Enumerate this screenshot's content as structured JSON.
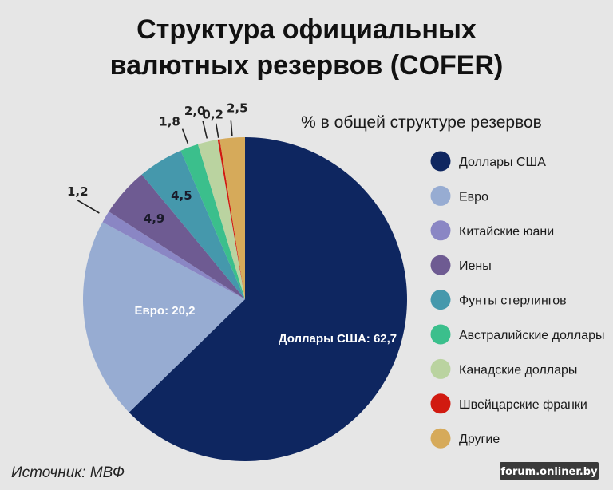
{
  "chart_data": {
    "type": "pie",
    "title_lines": [
      "Структура официальных",
      "валютных резервов (COFER)"
    ],
    "subtitle": "% в общей структуре резервов",
    "slices": [
      {
        "name": "Доллары США",
        "value": 62.7,
        "label": "Доллары США: 62,7",
        "color": "#0e2660"
      },
      {
        "name": "Евро",
        "value": 20.2,
        "label": "Евро: 20,2",
        "color": "#97acd2"
      },
      {
        "name": "Китайские юани",
        "value": 1.2,
        "label": "1,2",
        "color": "#8a86c4"
      },
      {
        "name": "Иены",
        "value": 4.9,
        "label": "4,9",
        "color": "#6e5b92"
      },
      {
        "name": "Фунты стерлингов",
        "value": 4.5,
        "label": "4,5",
        "color": "#4598ac"
      },
      {
        "name": "Австралийские доллары",
        "value": 1.8,
        "label": "1,8",
        "color": "#3bbf8c"
      },
      {
        "name": "Канадские доллары",
        "value": 2.0,
        "label": "2,0",
        "color": "#bad3a0"
      },
      {
        "name": "Швейцарские франки",
        "value": 0.2,
        "label": "0,2",
        "color": "#d11a10"
      },
      {
        "name": "Другие",
        "value": 2.5,
        "label": "2,5",
        "color": "#d6aa5a"
      }
    ],
    "legend_position": "right"
  },
  "source": "Источник: МВФ",
  "watermark": "forum.onliner.by"
}
